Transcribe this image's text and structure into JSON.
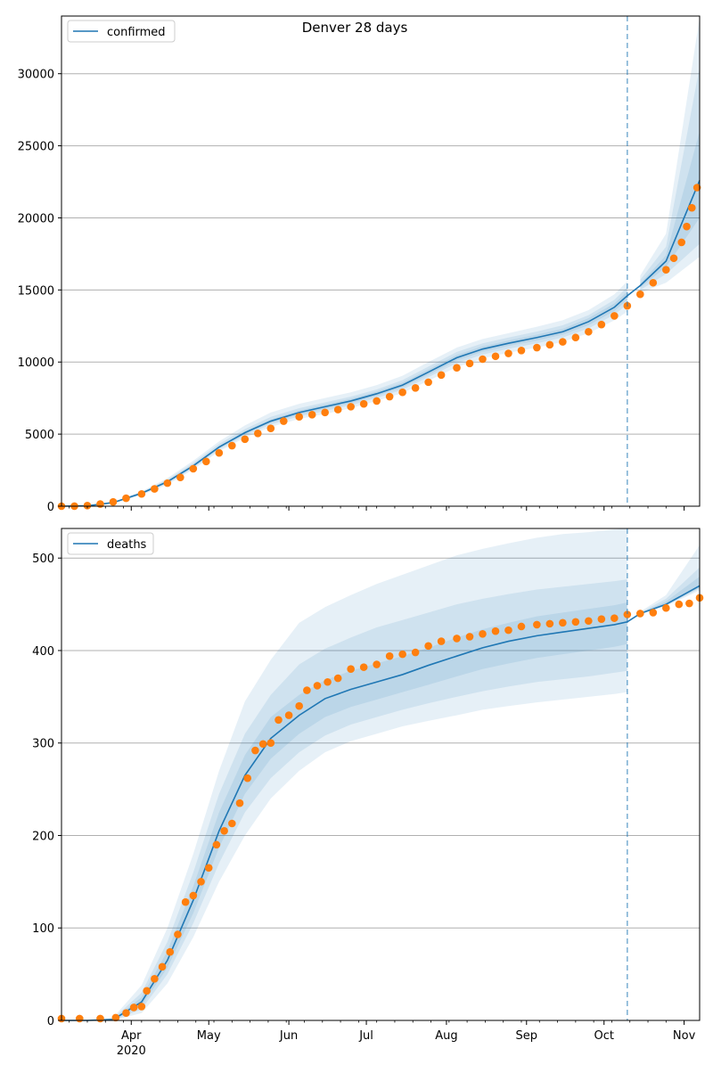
{
  "chart_data": {
    "type": "line",
    "title": "Denver 28 days",
    "x_ticks": [
      "Apr",
      "May",
      "Jun",
      "Jul",
      "Aug",
      "Sep",
      "Oct",
      "Nov"
    ],
    "x_year_label": "2020",
    "x_range": [
      "2020-03-05",
      "2020-11-07"
    ],
    "forecast_start": "2020-10-10",
    "colors": {
      "model": "#1f77b4",
      "observed": "#ff7f0e",
      "band": "#1f77b4",
      "grid": "#b0b0b0",
      "forecast_line": "#1f77b4"
    },
    "panels": [
      {
        "legend": "confirmed",
        "ylim": [
          0,
          34000
        ],
        "y_ticks": [
          0,
          5000,
          10000,
          15000,
          20000,
          25000,
          30000
        ],
        "grid": "horizontal",
        "legend_position": "top-left",
        "model_line": {
          "dates": [
            "2020-03-05",
            "2020-03-15",
            "2020-03-25",
            "2020-04-05",
            "2020-04-15",
            "2020-04-25",
            "2020-05-05",
            "2020-05-15",
            "2020-05-25",
            "2020-06-05",
            "2020-06-15",
            "2020-06-25",
            "2020-07-05",
            "2020-07-15",
            "2020-07-25",
            "2020-08-05",
            "2020-08-15",
            "2020-08-25",
            "2020-09-05",
            "2020-09-15",
            "2020-09-25",
            "2020-10-05",
            "2020-10-10",
            "2020-10-15",
            "2020-10-25",
            "2020-11-07"
          ],
          "values": [
            0,
            30,
            250,
            900,
            1700,
            2800,
            4100,
            5100,
            5900,
            6500,
            6900,
            7300,
            7800,
            8400,
            9300,
            10300,
            10900,
            11300,
            11700,
            12100,
            12800,
            13800,
            14600,
            15300,
            17000,
            22600
          ]
        },
        "bands": [
          {
            "lower": [
              0,
              0,
              200,
              780,
              1500,
              2550,
              3800,
              4750,
              5500,
              6050,
              6400,
              6800,
              7300,
              7850,
              8700,
              9650,
              10250,
              10650,
              11000,
              11400,
              12000,
              12900,
              13500,
              14800,
              15500,
              17300
            ],
            "upper": [
              0,
              60,
              300,
              1030,
              1950,
              3150,
              4500,
              5600,
              6500,
              7100,
              7500,
              7900,
              8400,
              9050,
              10000,
              11000,
              11600,
              12000,
              12450,
              12900,
              13600,
              14700,
              15600,
              16000,
              18900,
              33900
            ]
          },
          {
            "lower": [
              0,
              10,
              220,
              830,
              1580,
              2650,
              3930,
              4900,
              5670,
              6230,
              6600,
              7000,
              7500,
              8080,
              8950,
              9920,
              10520,
              10920,
              11300,
              11700,
              12330,
              13280,
              14000,
              15000,
              16100,
              18200
            ],
            "upper": [
              0,
              50,
              280,
              980,
              1850,
              3000,
              4320,
              5350,
              6200,
              6800,
              7200,
              7600,
              8100,
              8750,
              9680,
              10700,
              11300,
              11700,
              12120,
              12550,
              13250,
              14320,
              15200,
              15700,
              18000,
              30500
            ]
          },
          {
            "lower": [
              0,
              20,
              235,
              860,
              1640,
              2720,
              4020,
              5000,
              5790,
              6360,
              6750,
              7150,
              7650,
              8240,
              9120,
              10110,
              10710,
              11110,
              11500,
              11900,
              12560,
              13540,
              14300,
              15150,
              16600,
              20000
            ],
            "upper": [
              0,
              40,
              265,
              940,
              1760,
              2880,
              4180,
              5200,
              6010,
              6640,
              7050,
              7450,
              7950,
              8560,
              9480,
              10490,
              11090,
              11490,
              11900,
              12300,
              13040,
              14060,
              14900,
              15450,
              17400,
              26000
            ]
          }
        ],
        "observed": {
          "dates": [
            "2020-03-05",
            "2020-03-10",
            "2020-03-15",
            "2020-03-20",
            "2020-03-25",
            "2020-03-30",
            "2020-04-05",
            "2020-04-10",
            "2020-04-15",
            "2020-04-20",
            "2020-04-25",
            "2020-04-30",
            "2020-05-05",
            "2020-05-10",
            "2020-05-15",
            "2020-05-20",
            "2020-05-25",
            "2020-05-30",
            "2020-06-05",
            "2020-06-10",
            "2020-06-15",
            "2020-06-20",
            "2020-06-25",
            "2020-06-30",
            "2020-07-05",
            "2020-07-10",
            "2020-07-15",
            "2020-07-20",
            "2020-07-25",
            "2020-07-30",
            "2020-08-05",
            "2020-08-10",
            "2020-08-15",
            "2020-08-20",
            "2020-08-25",
            "2020-08-30",
            "2020-09-05",
            "2020-09-10",
            "2020-09-15",
            "2020-09-20",
            "2020-09-25",
            "2020-09-30",
            "2020-10-05",
            "2020-10-10",
            "2020-10-15",
            "2020-10-20",
            "2020-10-25",
            "2020-10-28",
            "2020-10-31",
            "2020-11-02",
            "2020-11-04",
            "2020-11-06"
          ],
          "values": [
            0,
            5,
            40,
            150,
            300,
            550,
            850,
            1200,
            1600,
            2000,
            2600,
            3100,
            3700,
            4200,
            4650,
            5050,
            5400,
            5900,
            6200,
            6350,
            6500,
            6700,
            6900,
            7100,
            7300,
            7600,
            7900,
            8200,
            8600,
            9100,
            9600,
            9900,
            10200,
            10400,
            10600,
            10800,
            11000,
            11200,
            11400,
            11700,
            12100,
            12600,
            13200,
            13900,
            14700,
            15500,
            16400,
            17200,
            18300,
            19400,
            20700,
            22100
          ]
        }
      },
      {
        "legend": "deaths",
        "ylim": [
          0,
          532
        ],
        "y_ticks": [
          0,
          100,
          200,
          300,
          400,
          500
        ],
        "grid": "horizontal",
        "legend_position": "top-left",
        "model_line": {
          "dates": [
            "2020-03-05",
            "2020-03-15",
            "2020-03-25",
            "2020-04-05",
            "2020-04-15",
            "2020-04-25",
            "2020-05-05",
            "2020-05-15",
            "2020-05-25",
            "2020-06-05",
            "2020-06-15",
            "2020-06-25",
            "2020-07-05",
            "2020-07-15",
            "2020-07-25",
            "2020-08-05",
            "2020-08-15",
            "2020-08-25",
            "2020-09-05",
            "2020-09-15",
            "2020-09-25",
            "2020-10-05",
            "2020-10-10",
            "2020-10-15",
            "2020-10-25",
            "2020-11-07"
          ],
          "values": [
            0,
            0,
            1,
            20,
            65,
            130,
            205,
            265,
            305,
            330,
            348,
            358,
            366,
            374,
            384,
            394,
            403,
            410,
            416,
            420,
            424,
            428,
            431,
            440,
            450,
            470
          ]
        },
        "bands": [
          {
            "lower": [
              0,
              0,
              0,
              8,
              40,
              90,
              150,
              200,
              240,
              270,
              290,
              302,
              310,
              318,
              324,
              330,
              336,
              340,
              344,
              347,
              350,
              353,
              355,
              440,
              448,
              465
            ],
            "upper": [
              0,
              0,
              3,
              38,
              100,
              180,
              270,
              345,
              390,
              430,
              447,
              460,
              472,
              482,
              492,
              503,
              510,
              516,
              522,
              526,
              528,
              531,
              532,
              442,
              460,
              514
            ]
          },
          {
            "lower": [
              0,
              0,
              0,
              12,
              50,
              105,
              170,
              225,
              262,
              290,
              308,
              320,
              328,
              336,
              343,
              350,
              356,
              361,
              366,
              369,
              372,
              376,
              378,
              440,
              449,
              467
            ],
            "upper": [
              0,
              0,
              2,
              30,
              85,
              160,
              245,
              310,
              352,
              385,
              402,
              414,
              425,
              433,
              441,
              450,
              456,
              461,
              466,
              469,
              472,
              475,
              477,
              441,
              456,
              490
            ]
          },
          {
            "lower": [
              0,
              0,
              0,
              16,
              57,
              116,
              187,
              245,
              283,
              310,
              328,
              339,
              347,
              355,
              363,
              372,
              380,
              386,
              392,
              396,
              400,
              404,
              407,
              440,
              449,
              468
            ],
            "upper": [
              0,
              0,
              1,
              25,
              75,
              145,
              225,
              287,
              328,
              352,
              368,
              378,
              386,
              394,
              403,
              414,
              423,
              430,
              437,
              441,
              445,
              449,
              452,
              440.5,
              453,
              480
            ]
          }
        ],
        "observed": {
          "dates": [
            "2020-03-05",
            "2020-03-12",
            "2020-03-20",
            "2020-03-26",
            "2020-03-30",
            "2020-04-02",
            "2020-04-05",
            "2020-04-07",
            "2020-04-10",
            "2020-04-13",
            "2020-04-16",
            "2020-04-19",
            "2020-04-22",
            "2020-04-25",
            "2020-04-28",
            "2020-05-01",
            "2020-05-04",
            "2020-05-07",
            "2020-05-10",
            "2020-05-13",
            "2020-05-16",
            "2020-05-19",
            "2020-05-22",
            "2020-05-25",
            "2020-05-28",
            "2020-06-01",
            "2020-06-05",
            "2020-06-08",
            "2020-06-12",
            "2020-06-16",
            "2020-06-20",
            "2020-06-25",
            "2020-06-30",
            "2020-07-05",
            "2020-07-10",
            "2020-07-15",
            "2020-07-20",
            "2020-07-25",
            "2020-07-30",
            "2020-08-05",
            "2020-08-10",
            "2020-08-15",
            "2020-08-20",
            "2020-08-25",
            "2020-08-30",
            "2020-09-05",
            "2020-09-10",
            "2020-09-15",
            "2020-09-20",
            "2020-09-25",
            "2020-09-30",
            "2020-10-05",
            "2020-10-10",
            "2020-10-15",
            "2020-10-20",
            "2020-10-25",
            "2020-10-30",
            "2020-11-03",
            "2020-11-07"
          ],
          "values": [
            2,
            2,
            2,
            3,
            8,
            14,
            15,
            32,
            45,
            58,
            74,
            93,
            128,
            135,
            150,
            165,
            190,
            205,
            213,
            235,
            262,
            292,
            299,
            300,
            325,
            330,
            340,
            357,
            362,
            366,
            370,
            380,
            382,
            385,
            394,
            396,
            398,
            405,
            410,
            413,
            415,
            418,
            421,
            422,
            426,
            428,
            429,
            430,
            431,
            432,
            434,
            435,
            439,
            440,
            441,
            446,
            450,
            451,
            457
          ]
        }
      }
    ]
  }
}
